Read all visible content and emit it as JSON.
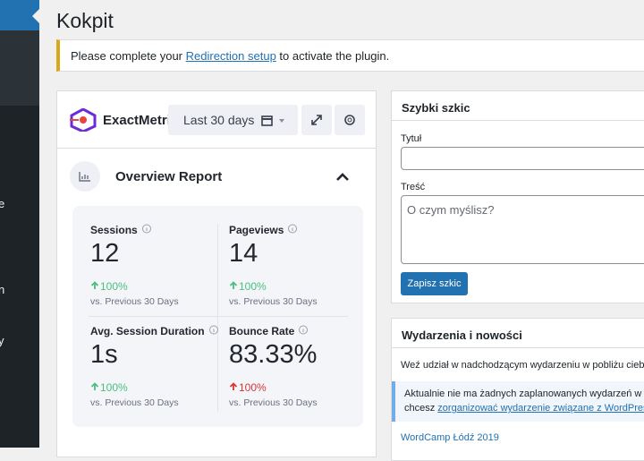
{
  "sidebar": {
    "fragments": [
      "e",
      "n",
      "y"
    ]
  },
  "header": {
    "title": "Kokpit"
  },
  "notice": {
    "before": "Please complete your ",
    "link": "Redirection setup",
    "after": " to activate the plugin."
  },
  "analytics_widget": {
    "brand": "ExactMetric",
    "date_range": "Last 30 days",
    "report_title": "Overview Report",
    "metrics": [
      {
        "label": "Sessions",
        "value": "12",
        "change": "100%",
        "comparison": "vs. Previous 30 Days",
        "trend": "up"
      },
      {
        "label": "Pageviews",
        "value": "14",
        "change": "100%",
        "comparison": "vs. Previous 30 Days",
        "trend": "up"
      },
      {
        "label": "Avg. Session Duration",
        "value": "1s",
        "change": "100%",
        "comparison": "vs. Previous 30 Days",
        "trend": "up"
      },
      {
        "label": "Bounce Rate",
        "value": "83.33%",
        "change": "100%",
        "comparison": "vs. Previous 30 Days",
        "trend": "down"
      }
    ]
  },
  "quick_draft": {
    "title": "Szybki szkic",
    "title_label": "Tytuł",
    "content_label": "Treść",
    "content_placeholder": "O czym myślisz?",
    "button": "Zapisz szkic"
  },
  "events": {
    "title": "Wydarzenia i nowości",
    "intro": "Weź udział w nadchodzącym wydarzeniu w pobliżu ciebi",
    "notice_line1": "Aktualnie nie ma żadnych zaplanowanych wydarzeń w p",
    "notice_before": "chcesz ",
    "notice_link": "zorganizować wydarzenie związane z WordPress",
    "item": "WordCamp Łódź 2019"
  }
}
